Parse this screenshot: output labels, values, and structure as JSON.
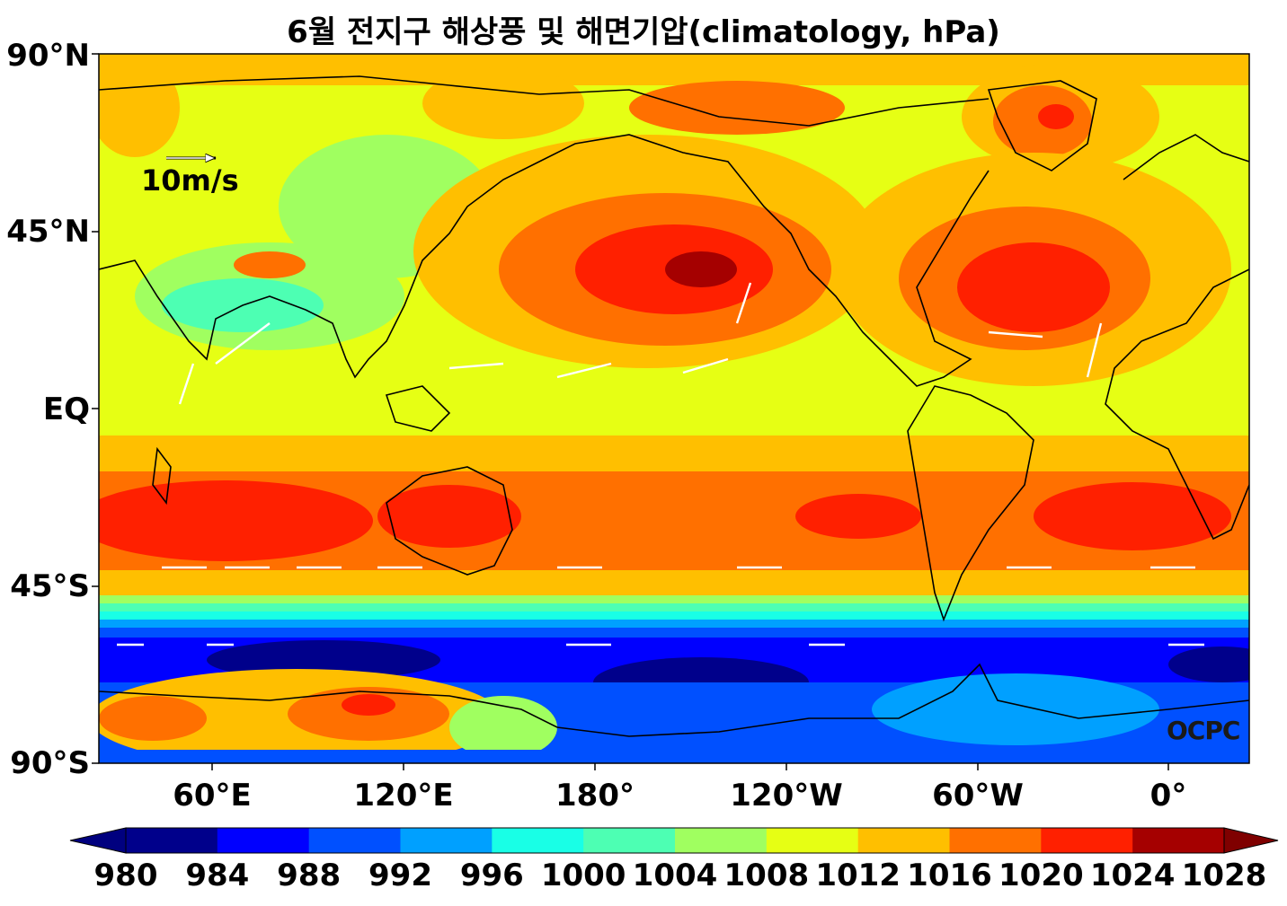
{
  "title": "6월 전지구 해상풍 및 해면기압(climatology, hPa)",
  "lat_labels": [
    "90°N",
    "45°N",
    "EQ",
    "45°S",
    "90°S"
  ],
  "lon_labels": [
    "60°E",
    "120°E",
    "180°",
    "120°W",
    "60°W",
    "0°"
  ],
  "colorbar": {
    "ticks": [
      "980",
      "984",
      "988",
      "992",
      "996",
      "1000",
      "1004",
      "1008",
      "1012",
      "1016",
      "1020",
      "1024",
      "1028"
    ],
    "under_color": "#00007f",
    "colors": [
      "#00008b",
      "#0000ff",
      "#0050ff",
      "#00a0ff",
      "#19ffe6",
      "#4dffb3",
      "#a0ff60",
      "#e6ff14",
      "#ffbf00",
      "#ff7000",
      "#ff2000",
      "#a50000"
    ],
    "over_color": "#7f0000"
  },
  "wind_reference": {
    "label": "10m/s",
    "speed_ms": 10
  },
  "credit": "OCPC"
}
